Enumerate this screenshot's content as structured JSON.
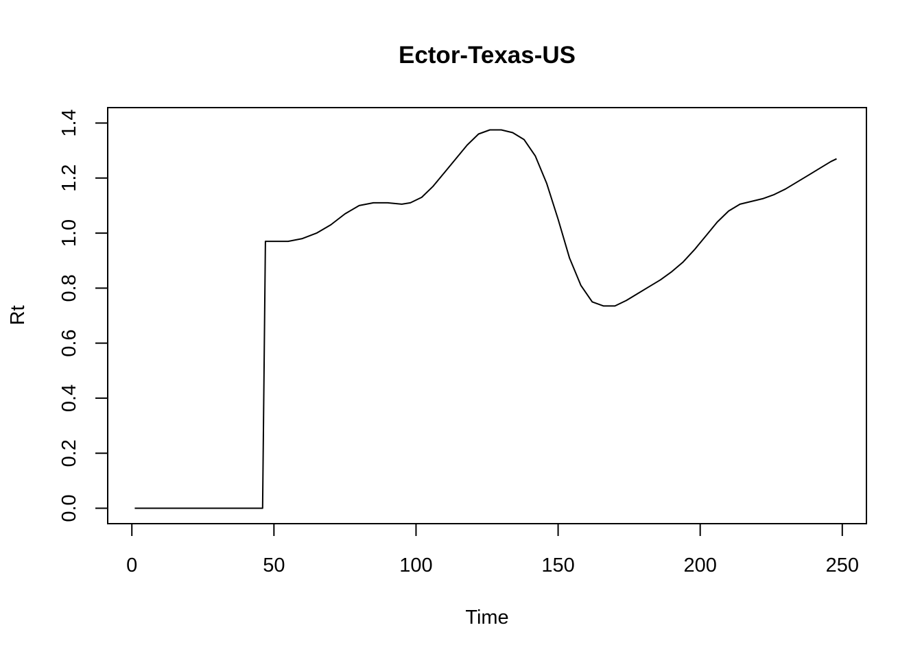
{
  "chart_data": {
    "type": "line",
    "title": "Ector-Texas-US",
    "xlabel": "Time",
    "ylabel": "Rt",
    "xlim": [
      -8.5,
      258.5
    ],
    "ylim": [
      -0.056,
      1.456
    ],
    "xticks": [
      0,
      50,
      100,
      150,
      200,
      250
    ],
    "yticks": [
      0.0,
      0.2,
      0.4,
      0.6,
      0.8,
      1.0,
      1.2,
      1.4
    ],
    "xtick_labels": [
      "0",
      "50",
      "100",
      "150",
      "200",
      "250"
    ],
    "ytick_labels": [
      "0.0",
      "0.2",
      "0.4",
      "0.6",
      "0.8",
      "1.0",
      "1.2",
      "1.4"
    ],
    "grid": false,
    "line_color": "#000000",
    "series": [
      {
        "x": [
          1,
          10,
          20,
          30,
          40,
          46,
          47,
          50,
          55,
          60,
          65,
          70,
          75,
          80,
          85,
          90,
          95,
          98,
          102,
          106,
          110,
          114,
          118,
          122,
          126,
          130,
          134,
          138,
          142,
          146,
          150,
          154,
          158,
          162,
          166,
          170,
          174,
          178,
          182,
          186,
          190,
          194,
          198,
          202,
          206,
          210,
          214,
          218,
          222,
          226,
          230,
          234,
          238,
          242,
          246,
          248
        ],
        "y": [
          0.0,
          0.0,
          0.0,
          0.0,
          0.0,
          0.0,
          0.97,
          0.97,
          0.97,
          0.98,
          1.0,
          1.03,
          1.07,
          1.1,
          1.11,
          1.11,
          1.105,
          1.11,
          1.13,
          1.17,
          1.22,
          1.27,
          1.32,
          1.36,
          1.375,
          1.375,
          1.365,
          1.34,
          1.28,
          1.18,
          1.05,
          0.91,
          0.81,
          0.75,
          0.735,
          0.735,
          0.755,
          0.78,
          0.805,
          0.83,
          0.86,
          0.895,
          0.94,
          0.99,
          1.04,
          1.08,
          1.105,
          1.115,
          1.125,
          1.14,
          1.16,
          1.185,
          1.21,
          1.235,
          1.26,
          1.27
        ]
      }
    ]
  }
}
